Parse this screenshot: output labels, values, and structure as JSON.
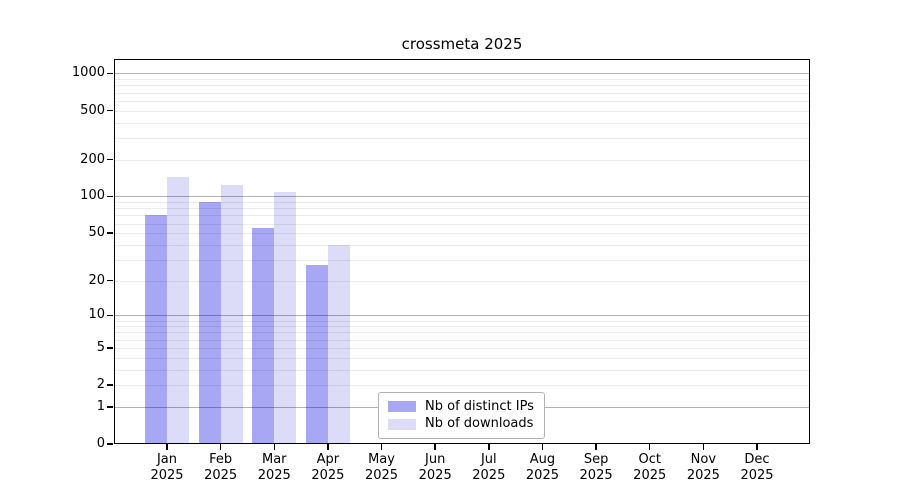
{
  "title": "crossmeta 2025",
  "chart_data": {
    "type": "bar",
    "title": "crossmeta 2025",
    "categories": [
      "Jan",
      "Feb",
      "Mar",
      "Apr",
      "May",
      "Jun",
      "Jul",
      "Aug",
      "Sep",
      "Oct",
      "Nov",
      "Dec"
    ],
    "category_year": "2025",
    "series": [
      {
        "name": "Nb of distinct IPs",
        "color": "#a7a7f3",
        "values": [
          70,
          90,
          55,
          27,
          0,
          0,
          0,
          0,
          0,
          0,
          0,
          0
        ]
      },
      {
        "name": "Nb of downloads",
        "color": "#dcdcf8",
        "values": [
          145,
          123,
          108,
          40,
          0,
          0,
          0,
          0,
          0,
          0,
          0,
          0
        ]
      }
    ],
    "y_ticks": [
      0,
      1,
      2,
      5,
      10,
      20,
      50,
      100,
      200,
      500,
      1000
    ],
    "y_scale": "log10(value+1)",
    "ylim": [
      0,
      1310
    ],
    "xlabel": "",
    "ylabel": "",
    "grid": "horizontal",
    "legend_position": "inside-bottom-center",
    "colors": {
      "axis": "#000000",
      "major_grid": "#b3b3b3",
      "minor_grid": "#ebebeb",
      "background": "#ffffff"
    }
  }
}
